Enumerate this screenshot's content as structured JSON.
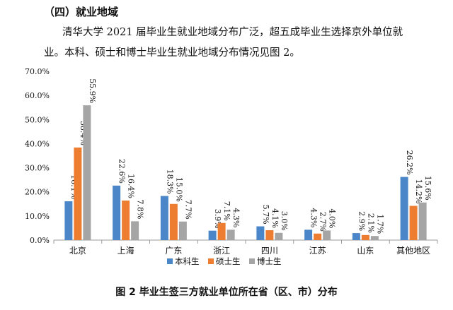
{
  "section": {
    "heading": "（四）就业地域",
    "paragraph_line1": "清华大学 2021 届毕业生就业地域分布广泛，超五成毕业生选择京外单位就",
    "paragraph_line2": "业。本科、硕士和博士毕业生就业地域分布情况见图 2。"
  },
  "caption": "图 2 毕业生签三方就业单位所在省（区、市）分布",
  "chart_data": {
    "type": "bar",
    "title": "",
    "xlabel": "",
    "ylabel": "",
    "ylim": [
      0,
      70
    ],
    "y_ticks": [
      "0.0%",
      "10.0%",
      "20.0%",
      "30.0%",
      "40.0%",
      "50.0%",
      "60.0%",
      "70.0%"
    ],
    "categories": [
      "北京",
      "上海",
      "广东",
      "浙江",
      "四川",
      "江苏",
      "山东",
      "其他地区"
    ],
    "series": [
      {
        "name": "本科生",
        "color": "#4A86C8",
        "values": [
          16.1,
          22.6,
          18.3,
          3.9,
          5.7,
          4.3,
          2.9,
          26.2
        ],
        "labels": [
          "16.1%",
          "22.6%",
          "18.3%",
          "3.9%",
          "5.7%",
          "4.3%",
          "2.9%",
          "26.2%"
        ]
      },
      {
        "name": "硕士生",
        "color": "#ED7D31",
        "values": [
          38.4,
          16.4,
          15.0,
          7.1,
          4.1,
          2.7,
          2.1,
          14.2
        ],
        "labels": [
          "38.4%",
          "16.4%",
          "15.0%",
          "7.1%",
          "4.1%",
          "2.7%",
          "2.1%",
          "14.2%"
        ]
      },
      {
        "name": "博士生",
        "color": "#A5A5A5",
        "values": [
          55.9,
          7.8,
          7.7,
          4.3,
          3.0,
          4.0,
          1.7,
          15.6
        ],
        "labels": [
          "55.9%",
          "7.8%",
          "7.7%",
          "4.3%",
          "3.0%",
          "4.0%",
          "1.7%",
          "15.6%"
        ]
      }
    ],
    "grid": false,
    "legend_position": "bottom"
  }
}
